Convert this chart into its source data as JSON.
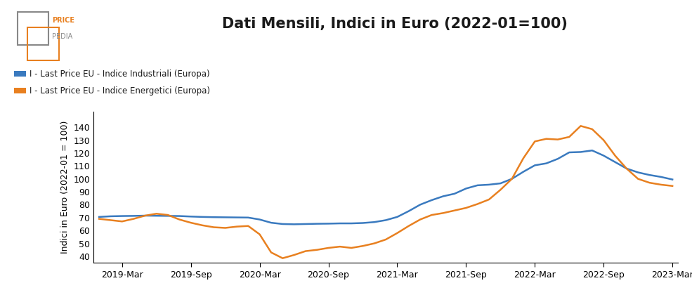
{
  "title": "Dati Mensili, Indici in Euro (2022-01=100)",
  "ylabel": "Indici in Euro (2022-01 = 100)",
  "legend": [
    "I - Last Price EU - Indice Industriali (Europa)",
    "I - Last Price EU - Indice Energetici (Europa)"
  ],
  "line_colors": [
    "#3a7abf",
    "#e88020"
  ],
  "background_color": "#ffffff",
  "ylim": [
    35,
    152
  ],
  "yticks": [
    40,
    50,
    60,
    70,
    80,
    90,
    100,
    110,
    120,
    130,
    140
  ],
  "blue_values": [
    70.5,
    71.0,
    71.2,
    71.3,
    71.5,
    71.4,
    71.3,
    71.2,
    70.8,
    70.5,
    70.3,
    70.2,
    70.1,
    70.0,
    68.5,
    66.0,
    65.0,
    64.8,
    65.0,
    65.2,
    65.3,
    65.5,
    65.5,
    65.8,
    66.5,
    68.0,
    70.5,
    75.0,
    80.0,
    83.5,
    86.5,
    88.5,
    92.5,
    95.0,
    95.5,
    96.5,
    100.0,
    105.5,
    110.5,
    112.0,
    115.5,
    120.5,
    120.8,
    122.0,
    118.0,
    113.0,
    108.0,
    105.0,
    103.0,
    101.5,
    99.5
  ],
  "orange_values": [
    69.0,
    68.0,
    67.0,
    69.0,
    71.5,
    73.0,
    72.0,
    68.5,
    66.0,
    64.0,
    62.5,
    62.0,
    63.0,
    63.5,
    57.0,
    43.0,
    38.5,
    41.0,
    44.0,
    45.0,
    46.5,
    47.5,
    46.5,
    48.0,
    50.0,
    53.0,
    58.0,
    63.5,
    68.5,
    72.0,
    73.5,
    75.5,
    77.5,
    80.5,
    84.0,
    91.5,
    100.0,
    116.0,
    129.0,
    131.0,
    130.5,
    132.5,
    141.0,
    138.5,
    130.0,
    118.0,
    108.0,
    100.0,
    97.0,
    95.5,
    94.5
  ],
  "xtick_positions": [
    2,
    8,
    14,
    20,
    26,
    32,
    38,
    44,
    50
  ],
  "xtick_labels": [
    "2019-Mar",
    "2019-Sep",
    "2020-Mar",
    "2020-Sep",
    "2021-Mar",
    "2021-Sep",
    "2022-Mar",
    "2022-Sep",
    "2023-Mar"
  ],
  "logo_orange": "#e88020",
  "logo_gray": "#888888"
}
